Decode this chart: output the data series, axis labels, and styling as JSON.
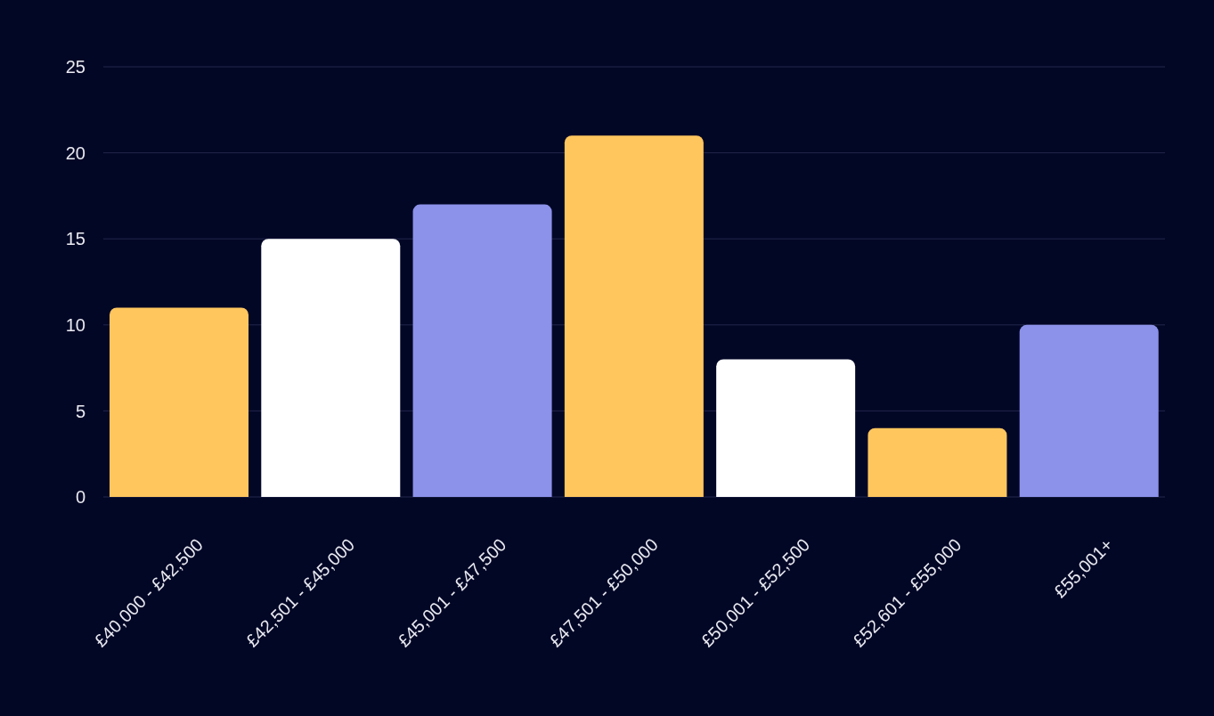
{
  "chart_data": {
    "type": "bar",
    "categories": [
      "£40,000 - £42,500",
      "£42,501 - £45,000",
      "£45,001 - £47,500",
      "£47,501 - £50,000",
      "£50,001 - £52,500",
      "£52,601 - £55,000",
      "£55,001+"
    ],
    "values": [
      11,
      15,
      17,
      21,
      8,
      4,
      10
    ],
    "colors": [
      "#ffc65e",
      "#ffffff",
      "#8c92ea",
      "#ffc65e",
      "#ffffff",
      "#ffc65e",
      "#8c92ea"
    ],
    "ylim": [
      0,
      25
    ],
    "yticks": [
      0,
      5,
      10,
      15,
      20,
      25
    ],
    "grid": "y"
  }
}
